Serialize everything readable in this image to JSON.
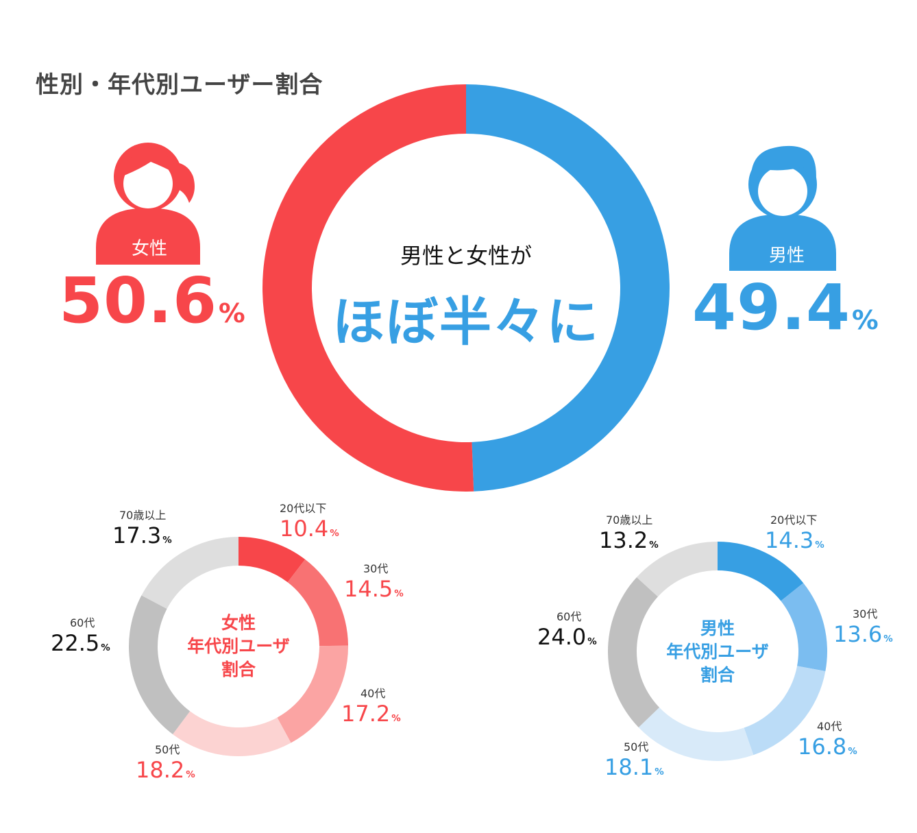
{
  "title": "性別・年代別ユーザー割合",
  "center": {
    "subtitle": "男性と女性が",
    "headline": "ほぼ半々に"
  },
  "colors": {
    "female": "#f7464a",
    "male": "#379fe3",
    "female_shades": [
      "#f7464a",
      "#f87273",
      "#fba4a3",
      "#fcd3d2",
      "#c0c0c0",
      "#dedede"
    ],
    "male_shades": [
      "#379fe3",
      "#7bbdf0",
      "#bbdcf7",
      "#d8eaf9",
      "#c0c0c0",
      "#dedede"
    ]
  },
  "female": {
    "label": "女性",
    "percent": "50.6",
    "unit": "%",
    "icon": "female-user-icon"
  },
  "male": {
    "label": "男性",
    "percent": "49.4",
    "unit": "%",
    "icon": "male-user-icon"
  },
  "female_age": {
    "inner_line1": "女性",
    "inner_line2": "年代別ユーザ",
    "inner_line3": "割合",
    "items": [
      {
        "age": "20代以下",
        "pct": "10.4",
        "unit": "%"
      },
      {
        "age": "30代",
        "pct": "14.5",
        "unit": "%"
      },
      {
        "age": "40代",
        "pct": "17.2",
        "unit": "%"
      },
      {
        "age": "50代",
        "pct": "18.2",
        "unit": "%"
      },
      {
        "age": "60代",
        "pct": "22.5",
        "unit": "%"
      },
      {
        "age": "70歳以上",
        "pct": "17.3",
        "unit": "%"
      }
    ]
  },
  "male_age": {
    "inner_line1": "男性",
    "inner_line2": "年代別ユーザ",
    "inner_line3": "割合",
    "items": [
      {
        "age": "20代以下",
        "pct": "14.3",
        "unit": "%"
      },
      {
        "age": "30代",
        "pct": "13.6",
        "unit": "%"
      },
      {
        "age": "40代",
        "pct": "16.8",
        "unit": "%"
      },
      {
        "age": "50代",
        "pct": "18.1",
        "unit": "%"
      },
      {
        "age": "60代",
        "pct": "24.0",
        "unit": "%"
      },
      {
        "age": "70歳以上",
        "pct": "13.2",
        "unit": "%"
      }
    ]
  },
  "chart_data": [
    {
      "type": "pie",
      "categories": [
        "女性",
        "男性"
      ],
      "values": [
        50.6,
        49.4
      ],
      "title": "性別・年代別ユーザー割合"
    },
    {
      "type": "pie",
      "title": "女性 年代別ユーザ 割合",
      "categories": [
        "20代以下",
        "30代",
        "40代",
        "50代",
        "60代",
        "70歳以上"
      ],
      "values": [
        10.4,
        14.5,
        17.2,
        18.2,
        22.5,
        17.3
      ]
    },
    {
      "type": "pie",
      "title": "男性 年代別ユーザ 割合",
      "categories": [
        "20代以下",
        "30代",
        "40代",
        "50代",
        "60代",
        "70歳以上"
      ],
      "values": [
        14.3,
        13.6,
        16.8,
        18.1,
        24.0,
        13.2
      ]
    }
  ]
}
